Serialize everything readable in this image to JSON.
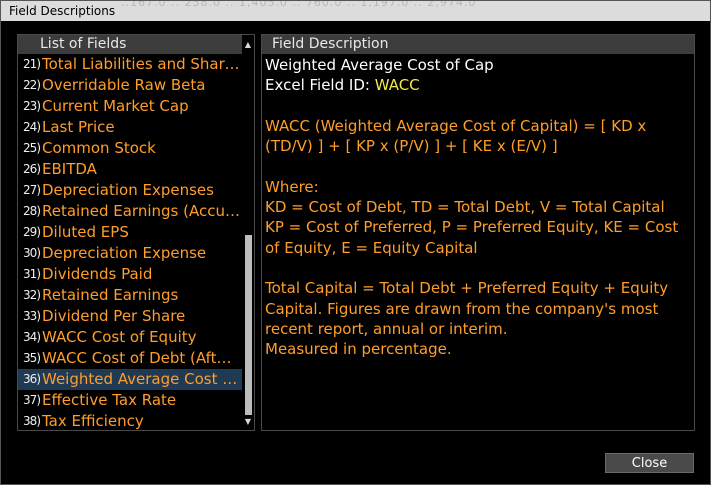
{
  "window": {
    "title": "Field Descriptions",
    "ghost_text": "..167.0   .. 258.0   .. 1,405.0   .. 760.0   .. 1,197.0   .. 2,974.0"
  },
  "list_panel": {
    "header": "List of Fields",
    "items": [
      {
        "num": "21)",
        "label": "Total Liabilities and Shareholders' Equity"
      },
      {
        "num": "22)",
        "label": "Overridable Raw Beta"
      },
      {
        "num": "23)",
        "label": "Current Market Cap"
      },
      {
        "num": "24)",
        "label": "Last Price"
      },
      {
        "num": "25)",
        "label": "Common Stock"
      },
      {
        "num": "26)",
        "label": "EBITDA"
      },
      {
        "num": "27)",
        "label": "Depreciation Expenses"
      },
      {
        "num": "28)",
        "label": "Retained Earnings (Accumulated Deficit)"
      },
      {
        "num": "29)",
        "label": "Diluted EPS"
      },
      {
        "num": "30)",
        "label": "Depreciation Expense"
      },
      {
        "num": "31)",
        "label": "Dividends Paid"
      },
      {
        "num": "32)",
        "label": "Retained Earnings"
      },
      {
        "num": "33)",
        "label": "Dividend Per Share"
      },
      {
        "num": "34)",
        "label": "WACC Cost of Equity"
      },
      {
        "num": "35)",
        "label": "WACC Cost of Debt (After Tax)"
      },
      {
        "num": "36)",
        "label": "Weighted Average Cost of Capital"
      },
      {
        "num": "37)",
        "label": "Effective Tax Rate"
      },
      {
        "num": "38)",
        "label": "Tax Efficiency"
      }
    ],
    "selected_index": 15
  },
  "description_panel": {
    "header": "Field Description",
    "title": "Weighted Average Cost of Cap",
    "excel_label": "Excel Field ID: ",
    "excel_id": "WACC",
    "formula": "WACC (Weighted Average Cost of Capital) = [ KD x (TD/V) ] + [ KP x (P/V) ] + [ KE x (E/V) ]",
    "where_label": "Where:",
    "where_line_1": "KD = Cost of Debt, TD = Total Debt, V = Total Capital",
    "where_line_2": "KP = Cost of Preferred, P = Preferred Equity, KE = Cost of Equity, E = Equity Capital",
    "total_capital": "Total Capital = Total Debt + Preferred Equity + Equity Capital.  Figures are drawn from the company's most recent report, annual or interim.",
    "measured": "Measured in percentage."
  },
  "buttons": {
    "close_label": "Close"
  },
  "colors": {
    "accent_orange": "#ff9d2b",
    "excel_id_yellow": "#f3e94b",
    "selection_blue": "#1f3a52",
    "header_gray": "#3c3c3c"
  },
  "icons": {
    "scroll_up": "▲",
    "scroll_down": "▼"
  }
}
